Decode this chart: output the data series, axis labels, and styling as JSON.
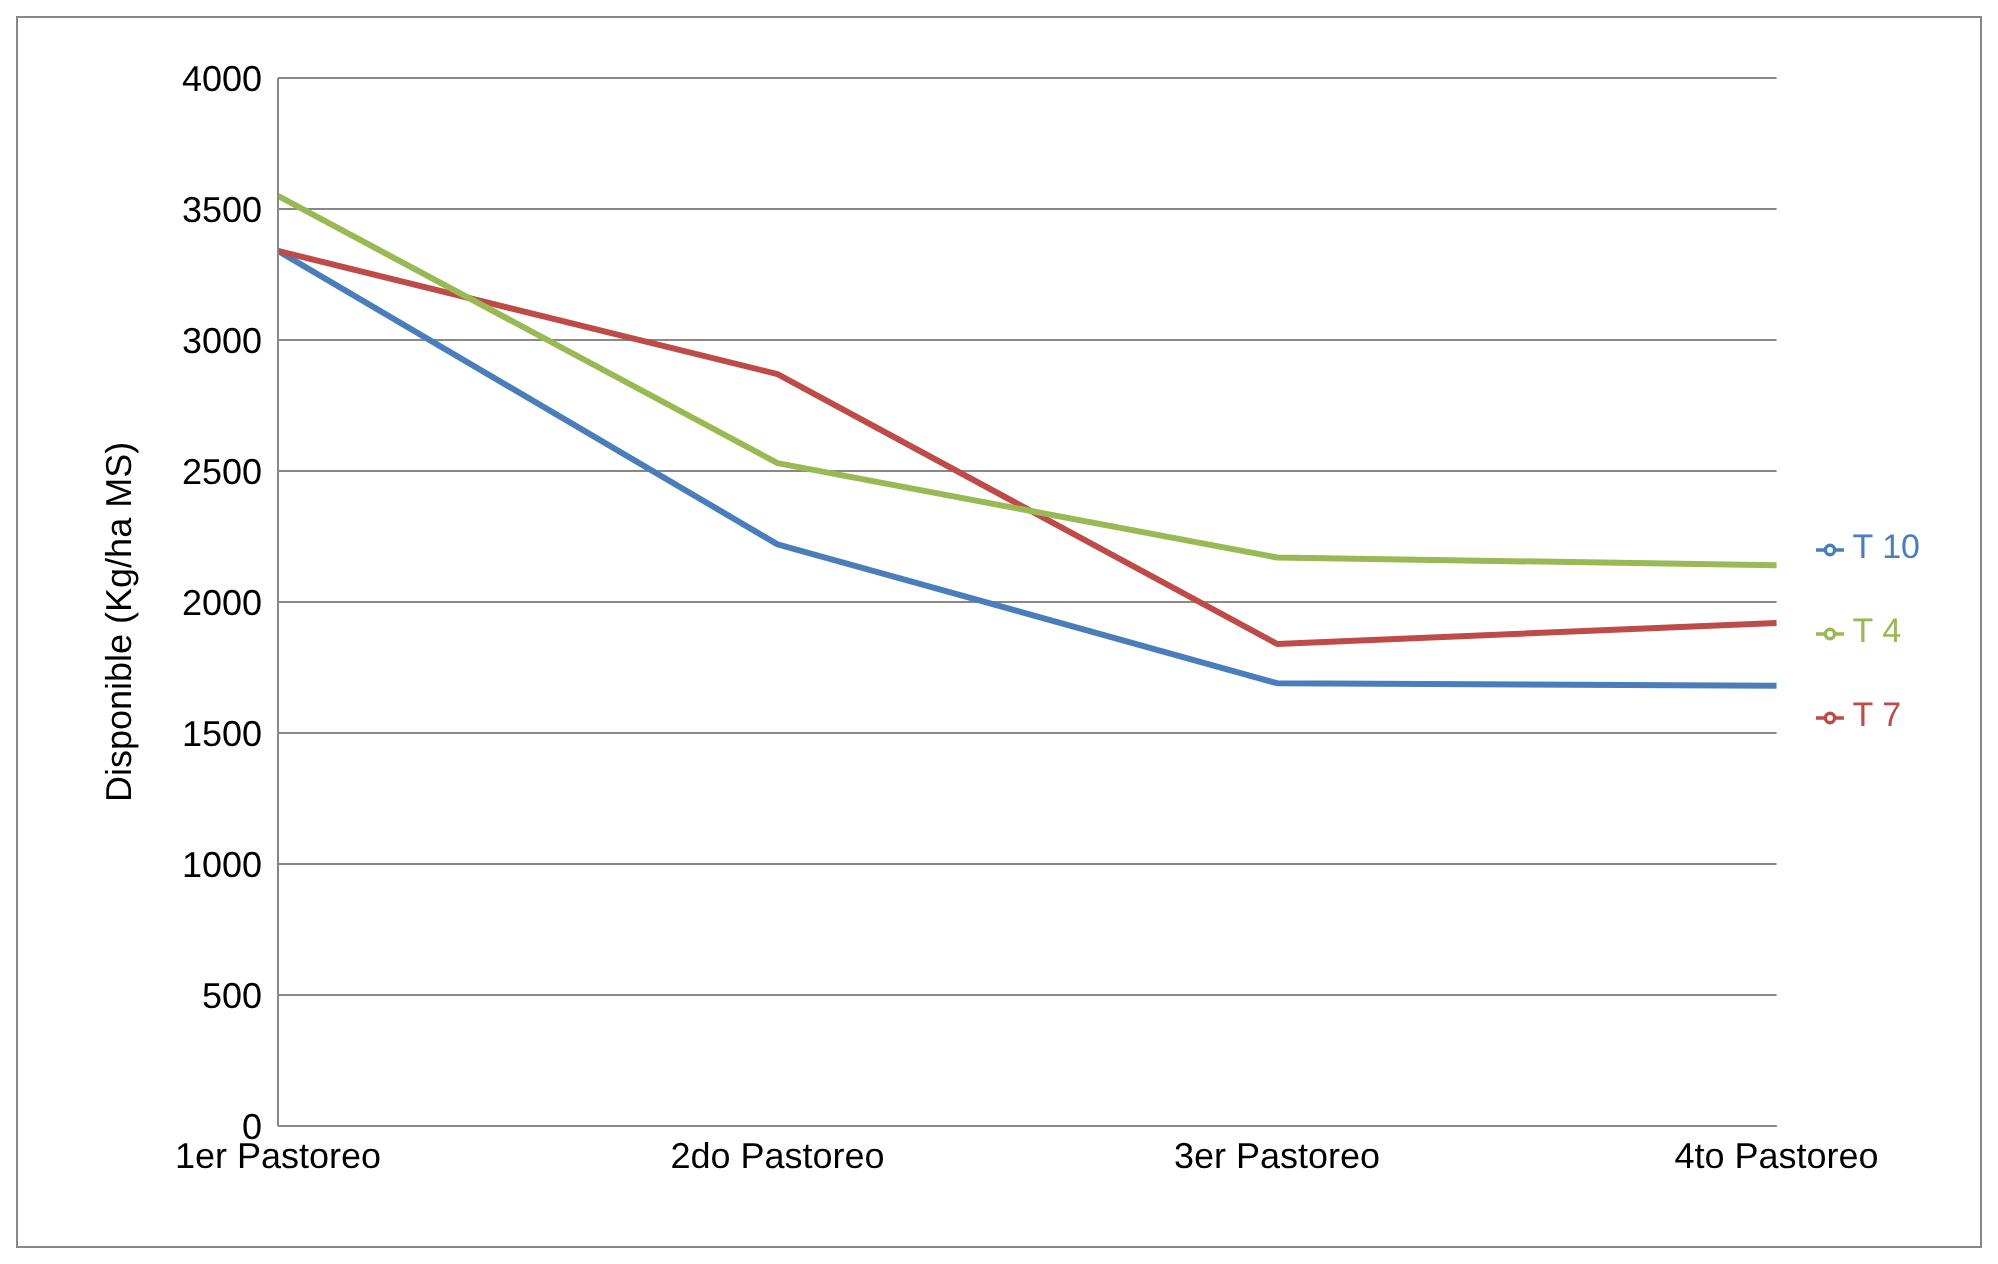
{
  "chart_data": {
    "type": "line",
    "ylabel": "Disponible  (Kg/ha MS)",
    "categories": [
      "1er Pastoreo",
      "2do Pastoreo",
      "3er Pastoreo",
      "4to Pastoreo"
    ],
    "series": [
      {
        "name": "T 10",
        "color": "#4a7ebb",
        "values": [
          3340,
          2220,
          1690,
          1680
        ]
      },
      {
        "name": "T 7",
        "color": "#be4b48",
        "values": [
          3340,
          2870,
          1840,
          1920
        ]
      },
      {
        "name": "T 4",
        "color": "#98b954",
        "values": [
          3550,
          2530,
          2170,
          2140
        ]
      }
    ],
    "ylim": [
      0,
      4000
    ],
    "yticks": [
      0,
      500,
      1000,
      1500,
      2000,
      2500,
      3000,
      3500,
      4000
    ],
    "grid": "y",
    "legend": "right",
    "marker": "none",
    "line_style": "solid"
  }
}
